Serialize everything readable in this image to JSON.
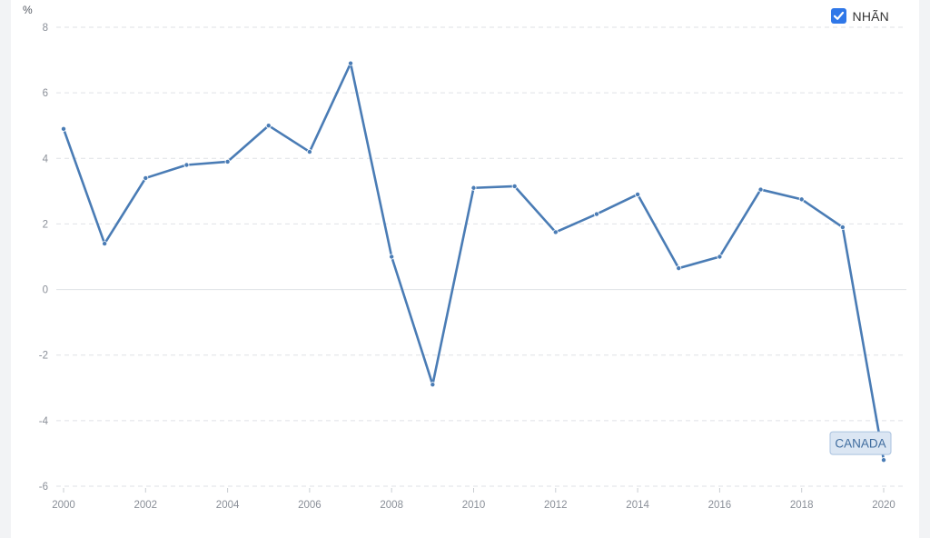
{
  "toggle": {
    "label": "NHÃN",
    "checked": true,
    "accent": "#2f77e8"
  },
  "chart_data": {
    "type": "line",
    "title": "",
    "ylabel": "%",
    "xlabel": "",
    "x": [
      2000,
      2001,
      2002,
      2003,
      2004,
      2005,
      2006,
      2007,
      2008,
      2009,
      2010,
      2011,
      2012,
      2013,
      2014,
      2015,
      2016,
      2017,
      2018,
      2019,
      2020
    ],
    "series": [
      {
        "name": "CANADA",
        "color": "#4a7cb5",
        "values": [
          4.9,
          1.4,
          3.4,
          3.8,
          3.9,
          5.0,
          4.2,
          6.9,
          1.0,
          -2.9,
          3.1,
          3.15,
          1.75,
          2.3,
          2.9,
          0.65,
          1.0,
          3.05,
          2.75,
          1.9,
          -5.2
        ]
      }
    ],
    "ylim": [
      -6,
      8
    ],
    "yticks": [
      "8",
      "6",
      "4",
      "2",
      "0",
      "-2",
      "-4",
      "-6"
    ],
    "xlim": [
      2000,
      2020
    ],
    "xticks": [
      "2000",
      "2002",
      "2004",
      "2006",
      "2008",
      "2010",
      "2012",
      "2014",
      "2016",
      "2018",
      "2020"
    ],
    "grid": true,
    "series_label_placement": "end of line"
  }
}
